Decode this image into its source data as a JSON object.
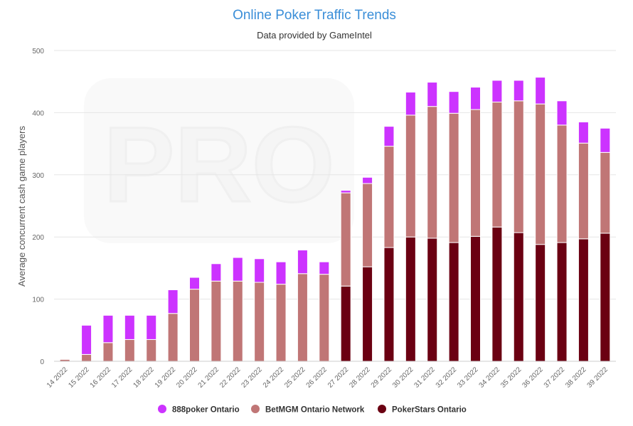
{
  "chart_data": {
    "type": "bar",
    "stacked": true,
    "title": "Online Poker Traffic Trends",
    "subtitle": "Data provided by GameIntel",
    "ylabel": "Average concurrent cash game players",
    "ylim": [
      0,
      500
    ],
    "yticks": [
      0,
      100,
      200,
      300,
      400,
      500
    ],
    "grid": true,
    "legend_position": "bottom-center",
    "watermark": "PRO",
    "categories": [
      "14 2022",
      "15 2022",
      "16 2022",
      "17 2022",
      "18 2022",
      "19 2022",
      "20 2022",
      "21 2022",
      "22 2022",
      "23 2022",
      "24 2022",
      "25 2022",
      "26 2022",
      "27 2022",
      "28 2022",
      "29 2022",
      "30 2022",
      "31 2022",
      "32 2022",
      "33 2022",
      "34 2022",
      "35 2022",
      "36 2022",
      "37 2022",
      "38 2022",
      "39 2022"
    ],
    "series": [
      {
        "name": "PokerStars Ontario",
        "color": "#6b0012",
        "values": [
          0,
          0,
          0,
          0,
          0,
          0,
          0,
          0,
          0,
          0,
          0,
          0,
          0,
          121,
          152,
          183,
          200,
          198,
          191,
          201,
          216,
          207,
          188,
          191,
          197,
          206
        ]
      },
      {
        "name": "BetMGM Ontario Network",
        "color": "#c07676",
        "values": [
          3,
          11,
          30,
          35,
          35,
          77,
          116,
          129,
          129,
          127,
          124,
          141,
          140,
          150,
          134,
          163,
          196,
          212,
          208,
          204,
          201,
          212,
          226,
          189,
          154,
          130
        ]
      },
      {
        "name": "888poker Ontario",
        "color": "#cc33ff",
        "values": [
          0,
          47,
          44,
          39,
          39,
          38,
          19,
          28,
          38,
          38,
          36,
          38,
          20,
          4,
          10,
          32,
          37,
          39,
          35,
          36,
          35,
          33,
          43,
          39,
          34,
          39
        ]
      }
    ],
    "legend_order": [
      "888poker Ontario",
      "BetMGM Ontario Network",
      "PokerStars Ontario"
    ]
  },
  "colors": {
    "title": "#3a8ed8",
    "grid": "#e6e6e6",
    "axis": "#cccccc"
  }
}
